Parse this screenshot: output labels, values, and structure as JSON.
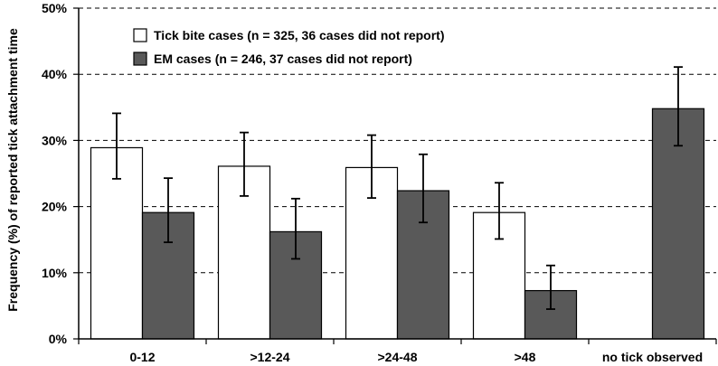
{
  "chart_data": {
    "type": "bar",
    "categories": [
      "0-12",
      ">12-24",
      ">24-48",
      ">48",
      "no tick observed"
    ],
    "series": [
      {
        "name": "Tick bite cases (n = 325, 36 cases did not report)",
        "color": "#ffffff",
        "values": [
          28.9,
          26.1,
          25.9,
          19.1,
          null
        ],
        "err_low": [
          24.2,
          21.6,
          21.3,
          15.1,
          null
        ],
        "err_high": [
          34.1,
          31.2,
          30.8,
          23.6,
          null
        ]
      },
      {
        "name": "EM cases (n = 246, 37 cases did not report)",
        "color": "#595959",
        "values": [
          19.1,
          16.2,
          22.4,
          7.3,
          34.8
        ],
        "err_low": [
          14.6,
          12.1,
          17.6,
          4.5,
          29.2
        ],
        "err_high": [
          24.3,
          21.2,
          27.9,
          11.1,
          41.1
        ]
      }
    ],
    "ylabel": "Frequency (%) of reported tick attachment time",
    "xlabel": "",
    "ylim": [
      0,
      50
    ],
    "yticks": [
      "0%",
      "10%",
      "20%",
      "30%",
      "40%",
      "50%"
    ],
    "grid": "horizontal dashed",
    "legend": "top-left"
  }
}
